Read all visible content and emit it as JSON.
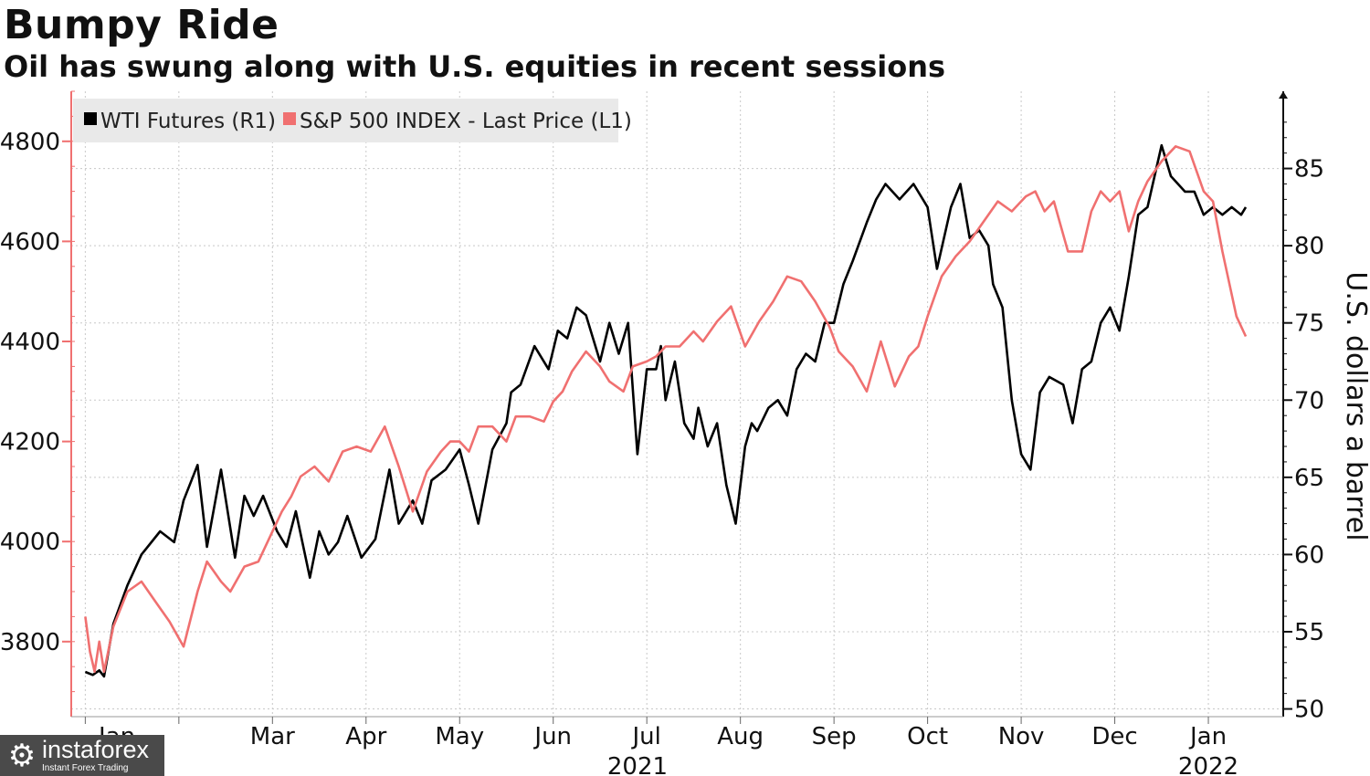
{
  "title": "Bumpy Ride",
  "subtitle": "Oil has swung along with U.S. equities in recent sessions",
  "watermark": {
    "brand": "instaforex",
    "tagline": "Instant Forex Trading"
  },
  "colors": {
    "wti": "#000000",
    "spx": "#f07070",
    "grid": "#c8c8c8",
    "legend_bg": "#e9e9e9"
  },
  "chart_data": {
    "type": "line",
    "title": "Bumpy Ride",
    "subtitle": "Oil has swung along with U.S. equities in recent sessions",
    "x_axis": {
      "unit": "months since 2021-01-01",
      "range": [
        -0.15,
        12.8
      ],
      "month_labels": [
        {
          "label": "Jan ...",
          "at": 0.5
        },
        {
          "label": "Mar",
          "at": 2.0
        },
        {
          "label": "Apr",
          "at": 3.0
        },
        {
          "label": "May",
          "at": 4.0
        },
        {
          "label": "Jun",
          "at": 5.0
        },
        {
          "label": "Jul",
          "at": 6.0
        },
        {
          "label": "Aug",
          "at": 7.0
        },
        {
          "label": "Sep",
          "at": 8.0
        },
        {
          "label": "Oct",
          "at": 9.0
        },
        {
          "label": "Nov",
          "at": 10.0
        },
        {
          "label": "Dec",
          "at": 11.0
        },
        {
          "label": "Jan",
          "at": 12.0
        }
      ],
      "year_labels": [
        {
          "label": "2021",
          "at": 5.9
        },
        {
          "label": "2022",
          "at": 12.0
        }
      ],
      "gridlines": [
        0,
        1,
        2,
        3,
        4,
        5,
        6,
        7,
        8,
        9,
        10,
        11,
        12
      ]
    },
    "left_axis": {
      "min": 3650,
      "max": 4900,
      "ticks": [
        3800,
        4000,
        4200,
        4400,
        4600,
        4800
      ],
      "minor_step": 50
    },
    "right_axis": {
      "label": "U.S. dollars a barrel",
      "min": 49.5,
      "max": 90.0,
      "ticks": [
        50,
        55,
        60,
        65,
        70,
        75,
        80,
        85
      ],
      "minor_step": 1
    },
    "legend": {
      "position": "top-left",
      "entries": [
        "WTI Futures (R1)",
        "S&P 500 INDEX - Last Price (L1)"
      ]
    },
    "series": [
      {
        "name": "WTI Futures (R1)",
        "axis": "right",
        "color": "#000000",
        "x": [
          0.0,
          0.08,
          0.15,
          0.2,
          0.3,
          0.45,
          0.6,
          0.8,
          0.95,
          1.05,
          1.2,
          1.3,
          1.45,
          1.6,
          1.7,
          1.8,
          1.9,
          2.05,
          2.15,
          2.25,
          2.4,
          2.5,
          2.6,
          2.7,
          2.8,
          2.95,
          3.1,
          3.25,
          3.35,
          3.5,
          3.6,
          3.7,
          3.85,
          4.0,
          4.1,
          4.2,
          4.35,
          4.5,
          4.55,
          4.65,
          4.8,
          4.95,
          5.05,
          5.15,
          5.25,
          5.35,
          5.5,
          5.6,
          5.7,
          5.8,
          5.9,
          6.0,
          6.1,
          6.15,
          6.2,
          6.3,
          6.4,
          6.5,
          6.55,
          6.65,
          6.75,
          6.85,
          6.95,
          7.05,
          7.12,
          7.18,
          7.3,
          7.4,
          7.5,
          7.6,
          7.7,
          7.8,
          7.9,
          8.0,
          8.1,
          8.2,
          8.35,
          8.45,
          8.55,
          8.7,
          8.85,
          9.0,
          9.1,
          9.25,
          9.35,
          9.45,
          9.55,
          9.65,
          9.7,
          9.8,
          9.9,
          10.0,
          10.1,
          10.2,
          10.3,
          10.45,
          10.55,
          10.65,
          10.75,
          10.85,
          10.95,
          11.05,
          11.15,
          11.25,
          11.35,
          11.5,
          11.6,
          11.75,
          11.85,
          11.95,
          12.05,
          12.15,
          12.25,
          12.35,
          12.4
        ],
        "y": [
          52.4,
          52.2,
          52.5,
          52.1,
          55.5,
          58.0,
          60.0,
          61.5,
          60.8,
          63.5,
          65.8,
          60.5,
          65.5,
          59.8,
          63.8,
          62.5,
          63.8,
          61.5,
          60.5,
          62.8,
          58.5,
          61.5,
          60.0,
          60.8,
          62.5,
          59.8,
          61.0,
          65.5,
          62.0,
          63.5,
          62.0,
          64.8,
          65.5,
          66.8,
          64.5,
          62.0,
          66.8,
          68.5,
          70.5,
          71.0,
          73.5,
          72.0,
          74.5,
          74.0,
          76.0,
          75.5,
          72.5,
          75.0,
          73.0,
          75.0,
          66.5,
          72.0,
          72.0,
          73.5,
          70.0,
          72.5,
          68.5,
          67.5,
          69.5,
          67.0,
          68.5,
          64.5,
          62.0,
          67.0,
          68.5,
          68.0,
          69.5,
          70.0,
          69.0,
          72.0,
          73.0,
          72.5,
          75.0,
          75.0,
          77.5,
          79.0,
          81.5,
          83.0,
          84.0,
          83.0,
          84.0,
          82.5,
          78.5,
          82.5,
          84.0,
          80.5,
          81.0,
          80.0,
          77.5,
          76.0,
          70.0,
          66.5,
          65.5,
          70.5,
          71.5,
          71.0,
          68.5,
          72.0,
          72.5,
          75.0,
          76.0,
          74.5,
          78.0,
          82.0,
          82.5,
          86.5,
          84.5,
          83.5,
          83.5,
          82.0,
          82.5,
          82.0,
          82.5,
          82.0,
          82.5
        ]
      },
      {
        "name": "S&P 500 INDEX - Last Price (L1)",
        "axis": "left",
        "color": "#f07070",
        "x": [
          0.0,
          0.05,
          0.1,
          0.15,
          0.2,
          0.3,
          0.45,
          0.6,
          0.75,
          0.9,
          1.05,
          1.2,
          1.3,
          1.45,
          1.55,
          1.7,
          1.85,
          2.0,
          2.1,
          2.2,
          2.3,
          2.45,
          2.6,
          2.75,
          2.9,
          3.05,
          3.2,
          3.35,
          3.5,
          3.65,
          3.8,
          3.9,
          4.0,
          4.1,
          4.2,
          4.35,
          4.5,
          4.6,
          4.75,
          4.9,
          5.0,
          5.1,
          5.2,
          5.35,
          5.5,
          5.6,
          5.75,
          5.85,
          6.0,
          6.1,
          6.2,
          6.35,
          6.5,
          6.6,
          6.75,
          6.9,
          7.05,
          7.2,
          7.35,
          7.5,
          7.65,
          7.8,
          7.95,
          8.05,
          8.2,
          8.35,
          8.5,
          8.65,
          8.8,
          8.9,
          9.0,
          9.15,
          9.3,
          9.45,
          9.6,
          9.75,
          9.9,
          10.05,
          10.15,
          10.25,
          10.35,
          10.5,
          10.65,
          10.75,
          10.85,
          10.95,
          11.05,
          11.15,
          11.25,
          11.35,
          11.5,
          11.65,
          11.8,
          11.95,
          12.05,
          12.15,
          12.3,
          12.4
        ],
        "y": [
          3850,
          3780,
          3740,
          3800,
          3740,
          3830,
          3900,
          3920,
          3880,
          3840,
          3790,
          3900,
          3960,
          3920,
          3900,
          3950,
          3960,
          4020,
          4060,
          4090,
          4130,
          4150,
          4120,
          4180,
          4190,
          4180,
          4230,
          4150,
          4060,
          4140,
          4180,
          4200,
          4200,
          4180,
          4230,
          4230,
          4200,
          4250,
          4250,
          4240,
          4280,
          4300,
          4340,
          4380,
          4350,
          4320,
          4300,
          4350,
          4360,
          4370,
          4390,
          4390,
          4420,
          4400,
          4440,
          4470,
          4390,
          4440,
          4480,
          4530,
          4520,
          4480,
          4430,
          4380,
          4350,
          4300,
          4400,
          4310,
          4370,
          4390,
          4450,
          4530,
          4570,
          4600,
          4640,
          4680,
          4660,
          4690,
          4700,
          4660,
          4680,
          4580,
          4580,
          4660,
          4700,
          4680,
          4700,
          4620,
          4680,
          4720,
          4760,
          4790,
          4780,
          4700,
          4680,
          4580,
          4450,
          4410
        ]
      }
    ]
  }
}
